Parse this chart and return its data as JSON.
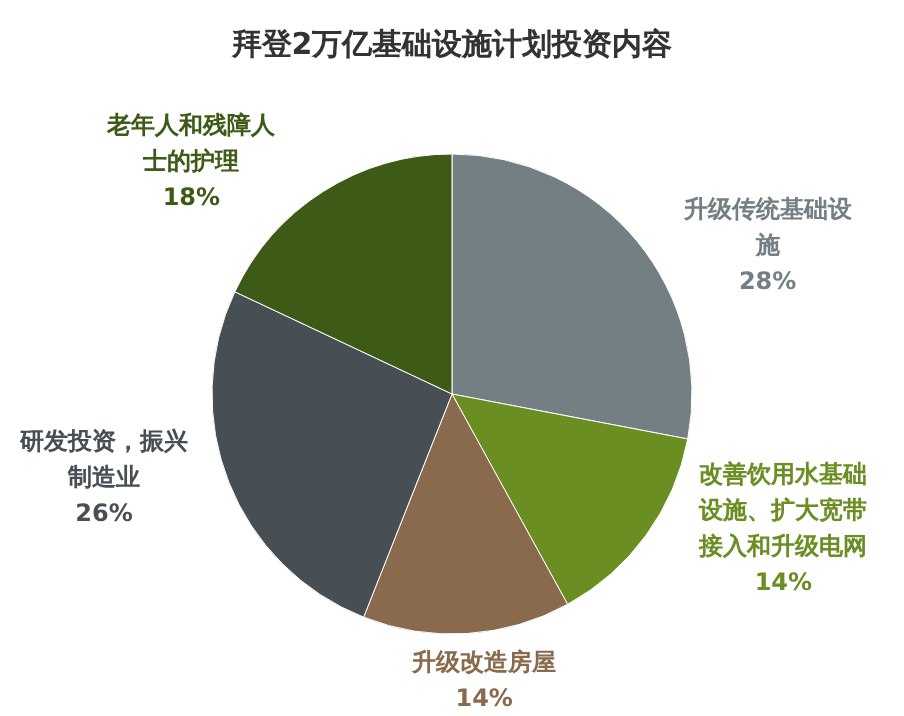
{
  "chart_data": {
    "type": "pie",
    "title": "拜登2万亿基础设施计划投资内容",
    "categories": [
      "升级传统基础设施",
      "改善饮用水基础设施、扩大宽带接入和升级电网",
      "升级改造房屋",
      "研发投资，振兴制造业",
      "老年人和残障人士的护理"
    ],
    "values": [
      28,
      14,
      14,
      26,
      18
    ],
    "value_labels": [
      "28%",
      "14%",
      "14%",
      "26%",
      "18%"
    ],
    "colors": [
      "#737f83",
      "#6b8e23",
      "#8a6a4c",
      "#474e54",
      "#3e5a17"
    ],
    "legend": false
  }
}
